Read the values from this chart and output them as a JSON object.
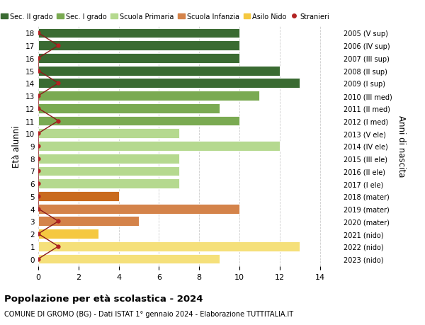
{
  "ages": [
    18,
    17,
    16,
    15,
    14,
    13,
    12,
    11,
    10,
    9,
    8,
    7,
    6,
    5,
    4,
    3,
    2,
    1,
    0
  ],
  "years": [
    "2005 (V sup)",
    "2006 (IV sup)",
    "2007 (III sup)",
    "2008 (II sup)",
    "2009 (I sup)",
    "2010 (III med)",
    "2011 (II med)",
    "2012 (I med)",
    "2013 (V ele)",
    "2014 (IV ele)",
    "2015 (III ele)",
    "2016 (II ele)",
    "2017 (I ele)",
    "2018 (mater)",
    "2019 (mater)",
    "2020 (mater)",
    "2021 (nido)",
    "2022 (nido)",
    "2023 (nido)"
  ],
  "values": [
    10,
    10,
    10,
    12,
    13,
    11,
    9,
    10,
    7,
    12,
    7,
    7,
    7,
    4,
    10,
    5,
    3,
    13,
    9
  ],
  "stranieri_x": [
    0,
    1,
    0,
    0,
    1,
    0,
    0,
    1,
    0,
    0,
    0,
    0,
    0,
    0,
    0,
    1,
    0,
    1,
    0
  ],
  "color_by_age": {
    "18": "#3a6b32",
    "17": "#3a6b32",
    "16": "#3a6b32",
    "15": "#3a6b32",
    "14": "#3a6b32",
    "13": "#7aaa52",
    "12": "#7aaa52",
    "11": "#7aaa52",
    "10": "#b5d98f",
    "9": "#b5d98f",
    "8": "#b5d98f",
    "7": "#b5d98f",
    "6": "#b5d98f",
    "5": "#c96a1e",
    "4": "#d4834a",
    "3": "#d4834a",
    "2": "#f5c840",
    "1": "#f5e07a",
    "0": "#f5e07a"
  },
  "line_color": "#8b1a1a",
  "dot_color": "#b22222",
  "xlim": [
    0,
    15
  ],
  "ylabel": "Età alunni",
  "ylabel_right": "Anni di nascita",
  "title": "Popolazione per età scolastica - 2024",
  "subtitle": "COMUNE DI GROMO (BG) - Dati ISTAT 1° gennaio 2024 - Elaborazione TUTTITALIA.IT",
  "legend_labels": [
    "Sec. II grado",
    "Sec. I grado",
    "Scuola Primaria",
    "Scuola Infanzia",
    "Asilo Nido",
    "Stranieri"
  ],
  "legend_colors": [
    "#3a6b32",
    "#7aaa52",
    "#b5d98f",
    "#d4834a",
    "#f5c840",
    "#b22222"
  ],
  "background_color": "#ffffff",
  "grid_color": "#cccccc"
}
